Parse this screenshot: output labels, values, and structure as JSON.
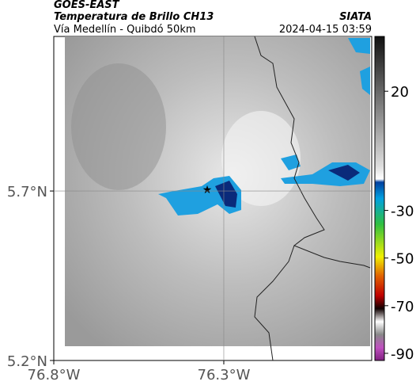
{
  "header": {
    "source": "GOES-EAST",
    "product": "Temperatura de Brillo CH13",
    "agency": "SIATA",
    "region": "Vía Medellín - Quibdó 50km",
    "timestamp": "2024-04-15 03:59"
  },
  "map": {
    "xlim": [
      -76.8,
      -75.865
    ],
    "ylim": [
      5.2,
      6.156
    ],
    "xticks": [
      {
        "value": -76.8,
        "label": "76.8°W"
      },
      {
        "value": -76.3,
        "label": "76.3°W"
      }
    ],
    "yticks": [
      {
        "value": 5.2,
        "label": "5.2°N"
      },
      {
        "value": 5.7,
        "label": "5.7°N"
      }
    ]
  },
  "colorbar": {
    "lim": [
      -93,
      43
    ],
    "ticks": [
      20,
      -30,
      -50,
      -70,
      -90
    ]
  }
}
